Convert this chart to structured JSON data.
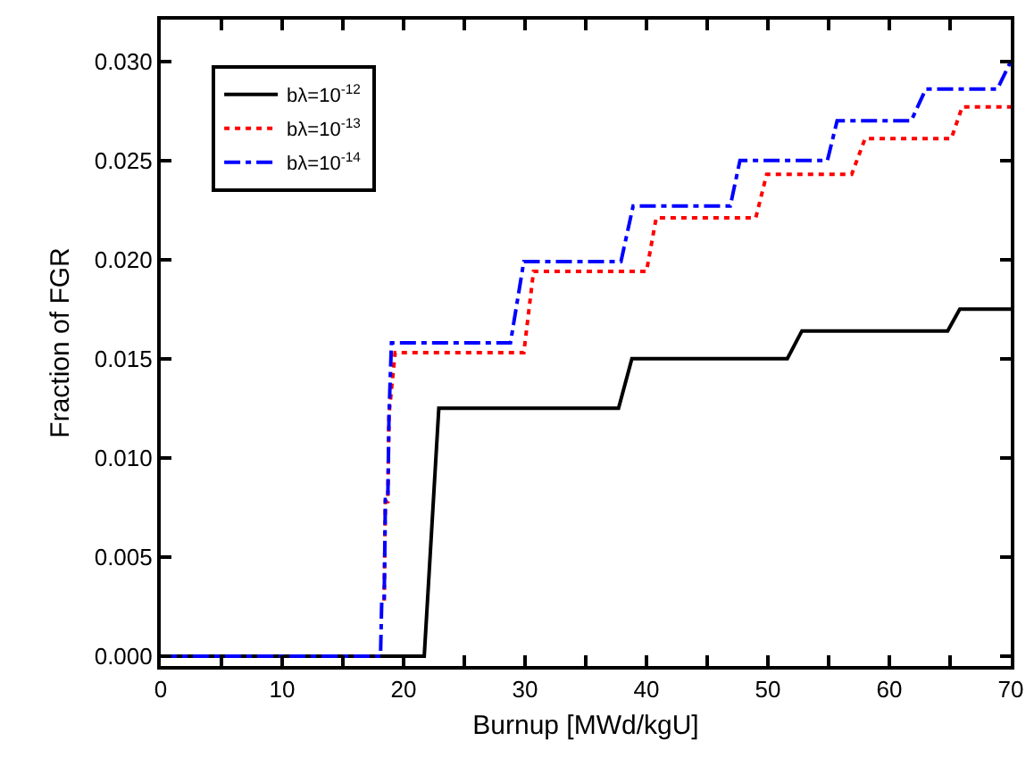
{
  "chart_data": {
    "type": "line",
    "xlabel": "Burnup [MWd/kgU]",
    "ylabel": "Fraction of FGR",
    "x": [
      0,
      21.7,
      22.9,
      37.7,
      38.8,
      51.6,
      52.8,
      64.8,
      65.8,
      70
    ],
    "series": [
      {
        "name": "bλ=10$^{-12}$",
        "color": "#000000",
        "line_style": "solid",
        "values": [
          0,
          0,
          0.0125,
          0.0125,
          0.015,
          0.015,
          0.0164,
          0.0164,
          0.0175,
          0.0175
        ]
      },
      {
        "name": "bλ=10$^{-13}$",
        "color": "#ff0000",
        "line_style": "dotted",
        "x": [
          18.4,
          18.5,
          18.7,
          18.8,
          19.3,
          29.9,
          30.7,
          40.0,
          40.8,
          49.0,
          49.9,
          56.9,
          58.0,
          65.1,
          66.0,
          70
        ],
        "values": [
          0.0028,
          0.0078,
          0.0078,
          0.0122,
          0.0153,
          0.0153,
          0.0194,
          0.0194,
          0.0221,
          0.0221,
          0.0243,
          0.0243,
          0.0261,
          0.0261,
          0.0277,
          0.0277
        ]
      },
      {
        "name": "bλ=10$^{-14}$",
        "color": "#0000ff",
        "line_style": "dashdot",
        "x": [
          0,
          18.1,
          18.2,
          18.4,
          18.5,
          18.7,
          18.8,
          19.0,
          28.8,
          29.9,
          37.9,
          38.9,
          46.9,
          47.7,
          54.9,
          55.7,
          61.8,
          63.0,
          68.9,
          70
        ],
        "values": [
          0,
          0,
          0.0028,
          0.0028,
          0.0079,
          0.0079,
          0.0122,
          0.0158,
          0.0158,
          0.0199,
          0.0199,
          0.0227,
          0.0227,
          0.025,
          0.025,
          0.027,
          0.027,
          0.0286,
          0.0286,
          0.03
        ]
      }
    ],
    "xlim": [
      0,
      70
    ],
    "ylim": [
      -0.0005,
      0.0321
    ],
    "xticks": [
      0,
      {
        "value": 5,
        "label": null
      },
      10,
      {
        "value": 15,
        "label": null
      },
      20,
      {
        "value": 25,
        "label": null
      },
      30,
      {
        "value": 35,
        "label": null
      },
      40,
      {
        "value": 45,
        "label": null
      },
      50,
      {
        "value": 55,
        "label": null
      },
      60,
      {
        "value": 65,
        "label": null
      },
      70
    ],
    "yticks": [
      {
        "value": 0,
        "label": "0.000"
      },
      {
        "value": 0.005,
        "label": "0.005"
      },
      {
        "value": 0.01,
        "label": "0.010"
      },
      {
        "value": 0.015,
        "label": "0.015"
      },
      {
        "value": 0.02,
        "label": "0.020"
      },
      {
        "value": 0.025,
        "label": "0.025"
      },
      {
        "value": 0.03,
        "label": "0.030"
      }
    ],
    "legend": "top left",
    "marker": "none"
  }
}
